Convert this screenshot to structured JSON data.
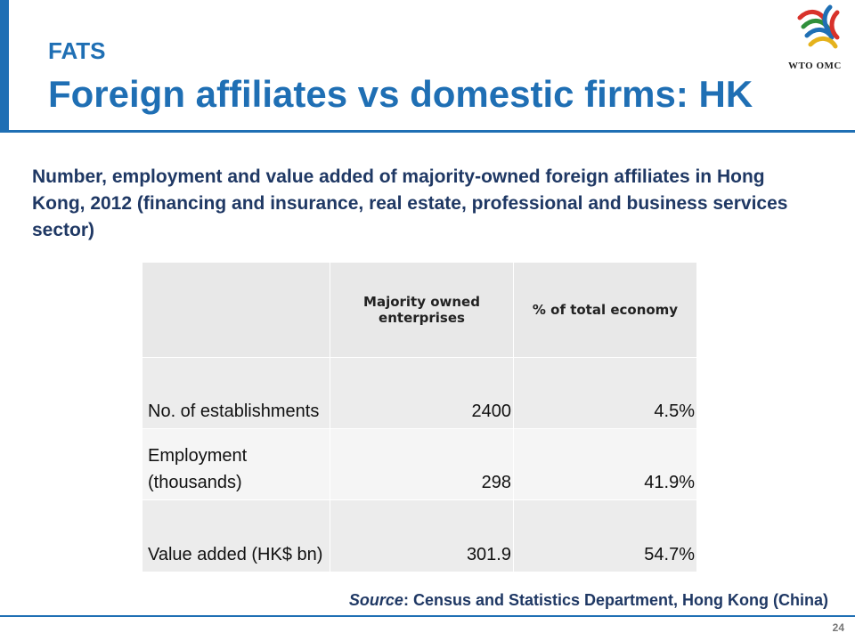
{
  "header": {
    "kicker": "FATS",
    "title": "Foreign affiliates vs domestic firms: HK",
    "logo_text": "WTO OMC"
  },
  "subtitle": "Number, employment and value added of majority-owned foreign affiliates in Hong Kong, 2012 (financing and insurance, real estate, professional and business services sector)",
  "table": {
    "columns": [
      "",
      "Majority owned enterprises",
      "% of total economy"
    ],
    "rows": [
      {
        "label": "No. of establishments",
        "value": "2400",
        "share": "4.5%"
      },
      {
        "label": "Employment (thousands)",
        "value": "298",
        "share": "41.9%"
      },
      {
        "label": "Value added (HK$ bn)",
        "value": "301.9",
        "share": "54.7%"
      }
    ]
  },
  "source": {
    "label": "Source",
    "text": ": Census and Statistics Department, Hong Kong (China)"
  },
  "page_number": "24",
  "colors": {
    "accent": "#1f6fb4",
    "text_dark_blue": "#1f3864"
  }
}
